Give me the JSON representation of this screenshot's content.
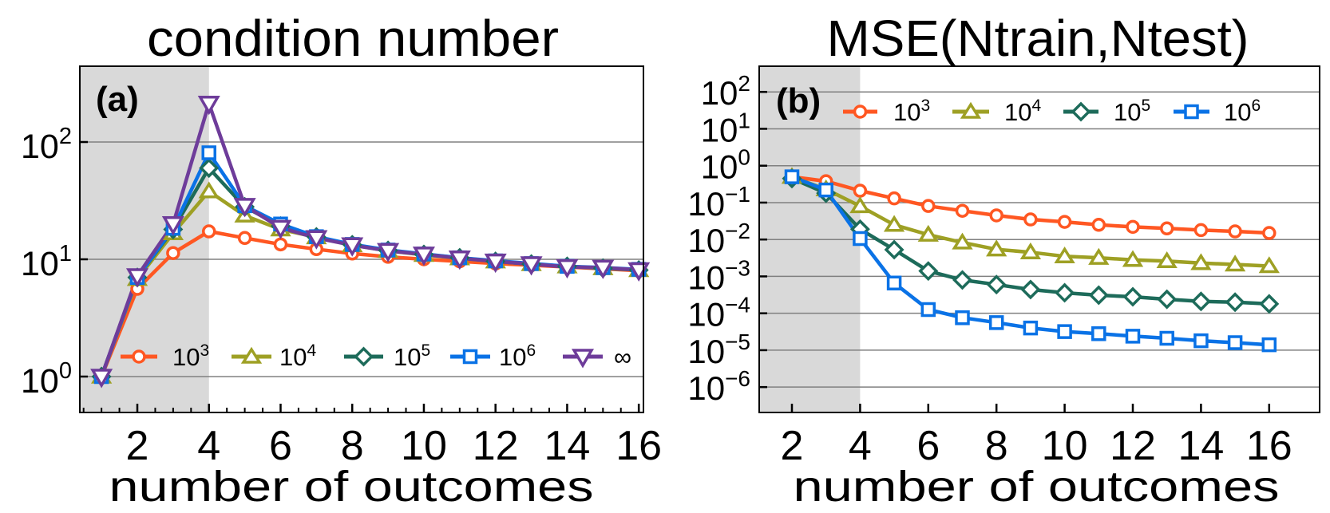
{
  "chart_data": [
    {
      "type": "line",
      "panel_label": "(a)",
      "title": "condition number",
      "xlabel": "number of outcomes",
      "ylabel": "",
      "yscale": "log",
      "xlim": [
        0.395,
        16.13
      ],
      "ylim": [
        0.494,
        443
      ],
      "grid": "horizontal lines at major y ticks",
      "shaded_x_max": 4,
      "shade_color": "#D9D9D9",
      "legend_placement": "bottom",
      "x": [
        1,
        2,
        3,
        4,
        5,
        6,
        7,
        8,
        9,
        10,
        11,
        12,
        13,
        14,
        15,
        16
      ],
      "x_ticks": [
        {
          "value": 2,
          "label": "2"
        },
        {
          "value": 4,
          "label": "4"
        },
        {
          "value": 6,
          "label": "6"
        },
        {
          "value": 8,
          "label": "8"
        },
        {
          "value": 10,
          "label": "10"
        },
        {
          "value": 12,
          "label": "12"
        },
        {
          "value": 14,
          "label": "14"
        },
        {
          "value": 16,
          "label": "16"
        }
      ],
      "x_minor_step": 0.5,
      "y_ticks": [
        {
          "value": 1,
          "base": "10",
          "exp": "0"
        },
        {
          "value": 10,
          "base": "10",
          "exp": "1"
        },
        {
          "value": 100,
          "base": "10",
          "exp": "2"
        }
      ],
      "series": [
        {
          "name": "10^3",
          "legend_base": "10",
          "legend_exp": "3",
          "color": "#FF5722",
          "marker": "circle",
          "values": [
            1.0,
            5.6,
            11.3,
            17.3,
            15.2,
            13.4,
            12.2,
            11.2,
            10.5,
            10.0,
            9.6,
            9.2,
            8.9,
            8.6,
            8.3,
            8.0
          ]
        },
        {
          "name": "10^4",
          "legend_base": "10",
          "legend_exp": "4",
          "color": "#9EA024",
          "marker": "triangle-up",
          "values": [
            1.0,
            6.8,
            16.7,
            38,
            23.6,
            18.0,
            15.4,
            13.2,
            11.8,
            10.9,
            10.2,
            9.6,
            9.1,
            8.7,
            8.4,
            8.1
          ]
        },
        {
          "name": "10^5",
          "legend_base": "10",
          "legend_exp": "5",
          "color": "#1D6B5A",
          "marker": "diamond",
          "values": [
            1.0,
            7.0,
            18.0,
            60,
            28.0,
            19.2,
            15.5,
            13.3,
            11.9,
            11.0,
            10.3,
            9.6,
            9.1,
            8.7,
            8.4,
            8.1
          ]
        },
        {
          "name": "10^6",
          "legend_base": "10",
          "legend_exp": "6",
          "color": "#0A72E6",
          "marker": "square",
          "values": [
            1.0,
            7.0,
            18.4,
            81,
            28.6,
            20.0,
            15.6,
            13.4,
            12.0,
            11.1,
            10.3,
            9.7,
            9.2,
            8.7,
            8.5,
            8.2
          ]
        },
        {
          "name": "∞",
          "legend_base": "∞",
          "legend_exp": "",
          "color": "#6E3C9A",
          "marker": "triangle-down",
          "values": [
            1.0,
            7.2,
            20.0,
            213,
            28.6,
            18.6,
            15.2,
            13.2,
            11.8,
            11.0,
            10.2,
            9.6,
            9.1,
            8.6,
            8.5,
            8.1
          ]
        }
      ]
    },
    {
      "type": "line",
      "panel_label": "(b)",
      "title": "MSE(Ntrain,Ntest)",
      "xlabel": "number of outcomes",
      "ylabel": "",
      "yscale": "log",
      "xlim": [
        1.04,
        17.48
      ],
      "ylim": [
        2.05e-07,
        497
      ],
      "grid": "horizontal lines at major y ticks",
      "shaded_x_max": 4,
      "shade_color": "#D9D9D9",
      "legend_placement": "top",
      "x": [
        2,
        3,
        4,
        5,
        6,
        7,
        8,
        9,
        10,
        11,
        12,
        13,
        14,
        15,
        16
      ],
      "x_ticks": [
        {
          "value": 2,
          "label": "2"
        },
        {
          "value": 4,
          "label": "4"
        },
        {
          "value": 6,
          "label": "6"
        },
        {
          "value": 8,
          "label": "8"
        },
        {
          "value": 10,
          "label": "10"
        },
        {
          "value": 12,
          "label": "12"
        },
        {
          "value": 14,
          "label": "14"
        },
        {
          "value": 16,
          "label": "16"
        }
      ],
      "x_minor_step": null,
      "y_ticks": [
        {
          "value": 100,
          "base": "10",
          "exp": "2"
        },
        {
          "value": 10,
          "base": "10",
          "exp": "1"
        },
        {
          "value": 1,
          "base": "10",
          "exp": "0"
        },
        {
          "value": 0.1,
          "base": "10",
          "exp": "−1"
        },
        {
          "value": 0.01,
          "base": "10",
          "exp": "−2"
        },
        {
          "value": 0.001,
          "base": "10",
          "exp": "−3"
        },
        {
          "value": 0.0001,
          "base": "10",
          "exp": "−4"
        },
        {
          "value": 1e-05,
          "base": "10",
          "exp": "−5"
        },
        {
          "value": 1e-06,
          "base": "10",
          "exp": "−6"
        }
      ],
      "series": [
        {
          "name": "10^3",
          "legend_base": "10",
          "legend_exp": "3",
          "color": "#FF5722",
          "marker": "circle",
          "values": [
            0.5,
            0.38,
            0.21,
            0.13,
            0.081,
            0.06,
            0.045,
            0.035,
            0.03,
            0.025,
            0.022,
            0.02,
            0.018,
            0.0166,
            0.015
          ]
        },
        {
          "name": "10^4",
          "legend_base": "10",
          "legend_exp": "4",
          "color": "#9EA024",
          "marker": "triangle-up",
          "values": [
            0.5,
            0.23,
            0.08,
            0.025,
            0.0135,
            0.0083,
            0.0054,
            0.0045,
            0.0035,
            0.0032,
            0.0028,
            0.0026,
            0.0023,
            0.0021,
            0.0019
          ]
        },
        {
          "name": "10^5",
          "legend_base": "10",
          "legend_exp": "5",
          "color": "#1D6B5A",
          "marker": "diamond",
          "values": [
            0.45,
            0.18,
            0.019,
            0.0053,
            0.0014,
            0.0008,
            0.0006,
            0.00044,
            0.00036,
            0.00031,
            0.00028,
            0.00024,
            0.00021,
            0.0002,
            0.00018
          ]
        },
        {
          "name": "10^6",
          "legend_base": "10",
          "legend_exp": "6",
          "color": "#0A72E6",
          "marker": "square",
          "values": [
            0.5,
            0.22,
            0.0106,
            0.00066,
            0.000126,
            7.6e-05,
            5.6e-05,
            4e-05,
            3.2e-05,
            2.8e-05,
            2.4e-05,
            2.1e-05,
            1.8e-05,
            1.6e-05,
            1.4e-05
          ]
        }
      ]
    }
  ]
}
